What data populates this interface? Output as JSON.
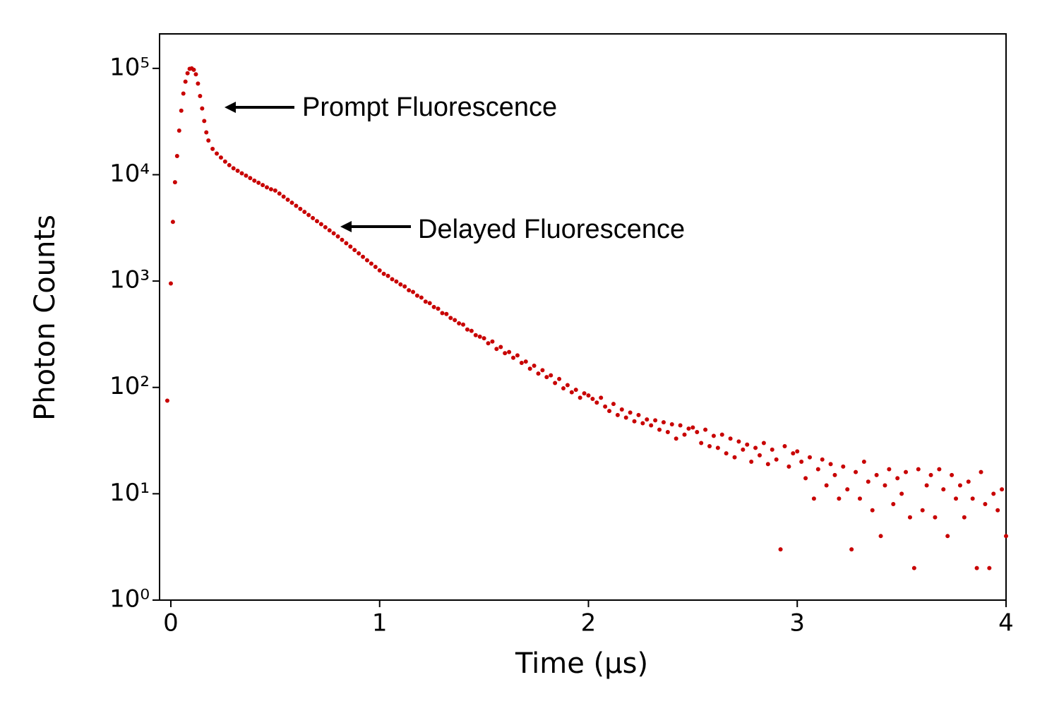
{
  "chart_data": {
    "type": "scatter",
    "xlabel": "Time (µs)",
    "ylabel": "Photon Counts",
    "yscale": "log",
    "color": "#c80000",
    "xlim": [
      -0.054,
      4
    ],
    "ylim": [
      1,
      211000
    ],
    "xticks": [
      0,
      1,
      2,
      3,
      4
    ],
    "yticks": [
      {
        "value": 1,
        "label": "10⁰"
      },
      {
        "value": 10,
        "label": "10¹"
      },
      {
        "value": 100,
        "label": "10²"
      },
      {
        "value": 1000,
        "label": "10³"
      },
      {
        "value": 10000,
        "label": "10⁴"
      },
      {
        "value": 100000,
        "label": "10⁵"
      }
    ],
    "annotations": [
      "Prompt Fluorescence",
      "Delayed Fluorescence"
    ],
    "x": [
      -0.017,
      0,
      0.01,
      0.02,
      0.03,
      0.04,
      0.05,
      0.06,
      0.07,
      0.08,
      0.09,
      0.1,
      0.11,
      0.12,
      0.13,
      0.14,
      0.15,
      0.16,
      0.17,
      0.18,
      0.2,
      0.22,
      0.24,
      0.26,
      0.28,
      0.3,
      0.32,
      0.34,
      0.36,
      0.38,
      0.4,
      0.42,
      0.44,
      0.46,
      0.48,
      0.5,
      0.52,
      0.54,
      0.56,
      0.58,
      0.6,
      0.62,
      0.64,
      0.66,
      0.68,
      0.7,
      0.72,
      0.74,
      0.76,
      0.78,
      0.8,
      0.82,
      0.84,
      0.86,
      0.88,
      0.9,
      0.92,
      0.94,
      0.96,
      0.98,
      1.0,
      1.02,
      1.04,
      1.06,
      1.08,
      1.1,
      1.12,
      1.14,
      1.16,
      1.18,
      1.2,
      1.22,
      1.24,
      1.26,
      1.28,
      1.3,
      1.32,
      1.34,
      1.36,
      1.38,
      1.4,
      1.42,
      1.44,
      1.46,
      1.48,
      1.5,
      1.52,
      1.54,
      1.56,
      1.58,
      1.6,
      1.62,
      1.64,
      1.66,
      1.68,
      1.7,
      1.72,
      1.74,
      1.76,
      1.78,
      1.8,
      1.82,
      1.84,
      1.86,
      1.88,
      1.9,
      1.92,
      1.94,
      1.96,
      1.98,
      2.0,
      2.02,
      2.04,
      2.06,
      2.08,
      2.1,
      2.12,
      2.14,
      2.16,
      2.18,
      2.2,
      2.22,
      2.24,
      2.26,
      2.28,
      2.3,
      2.32,
      2.34,
      2.36,
      2.38,
      2.4,
      2.42,
      2.44,
      2.46,
      2.48,
      2.5,
      2.52,
      2.54,
      2.56,
      2.58,
      2.6,
      2.62,
      2.64,
      2.66,
      2.68,
      2.7,
      2.72,
      2.74,
      2.76,
      2.78,
      2.8,
      2.82,
      2.84,
      2.86,
      2.88,
      2.9,
      2.92,
      2.94,
      2.96,
      2.98,
      3.0,
      3.02,
      3.04,
      3.06,
      3.08,
      3.1,
      3.12,
      3.14,
      3.16,
      3.18,
      3.2,
      3.22,
      3.24,
      3.26,
      3.28,
      3.3,
      3.32,
      3.34,
      3.36,
      3.38,
      3.4,
      3.42,
      3.44,
      3.46,
      3.48,
      3.5,
      3.52,
      3.54,
      3.56,
      3.58,
      3.6,
      3.62,
      3.64,
      3.66,
      3.68,
      3.7,
      3.72,
      3.74,
      3.76,
      3.78,
      3.8,
      3.82,
      3.84,
      3.86,
      3.88,
      3.9,
      3.92,
      3.94,
      3.96,
      3.98,
      4.0
    ],
    "values": [
      75,
      950,
      3600,
      8500,
      15000,
      26000,
      40000,
      58000,
      75000,
      90000,
      99000,
      100000,
      97000,
      88000,
      72000,
      55000,
      42000,
      32000,
      25000,
      21000,
      17500,
      15800,
      14500,
      13300,
      12300,
      11500,
      10900,
      10300,
      9800,
      9300,
      8800,
      8400,
      8000,
      7600,
      7300,
      7100,
      6650,
      6220,
      5820,
      5450,
      5100,
      4770,
      4470,
      4180,
      3910,
      3660,
      3430,
      3210,
      3000,
      2810,
      2630,
      2440,
      2270,
      2110,
      1960,
      1820,
      1690,
      1570,
      1460,
      1360,
      1260,
      1170,
      1120,
      1040,
      990,
      930,
      890,
      820,
      790,
      730,
      700,
      640,
      620,
      570,
      550,
      500,
      490,
      450,
      430,
      400,
      390,
      350,
      340,
      310,
      300,
      290,
      260,
      270,
      230,
      240,
      210,
      215,
      190,
      200,
      170,
      175,
      150,
      160,
      135,
      145,
      125,
      130,
      110,
      120,
      98,
      105,
      90,
      95,
      80,
      88,
      84,
      78,
      72,
      80,
      66,
      60,
      70,
      55,
      62,
      52,
      58,
      48,
      55,
      46,
      50,
      44,
      49,
      40,
      47,
      38,
      45,
      33,
      44,
      36,
      41,
      42,
      38,
      30,
      40,
      28,
      35,
      27,
      36,
      24,
      33,
      22,
      31,
      26,
      29,
      20,
      27,
      23,
      30,
      19,
      26,
      21,
      3,
      28,
      18,
      24,
      25,
      20,
      14,
      22,
      9,
      17,
      21,
      12,
      19,
      15,
      9,
      18,
      11,
      3,
      16,
      9,
      20,
      13,
      7,
      15,
      4,
      12,
      17,
      8,
      14,
      10,
      16,
      6,
      2,
      17,
      7,
      12,
      15,
      6,
      17,
      11,
      4,
      15,
      9,
      12,
      6,
      13,
      9,
      2,
      16,
      8,
      2,
      10,
      7,
      11,
      4
    ]
  }
}
